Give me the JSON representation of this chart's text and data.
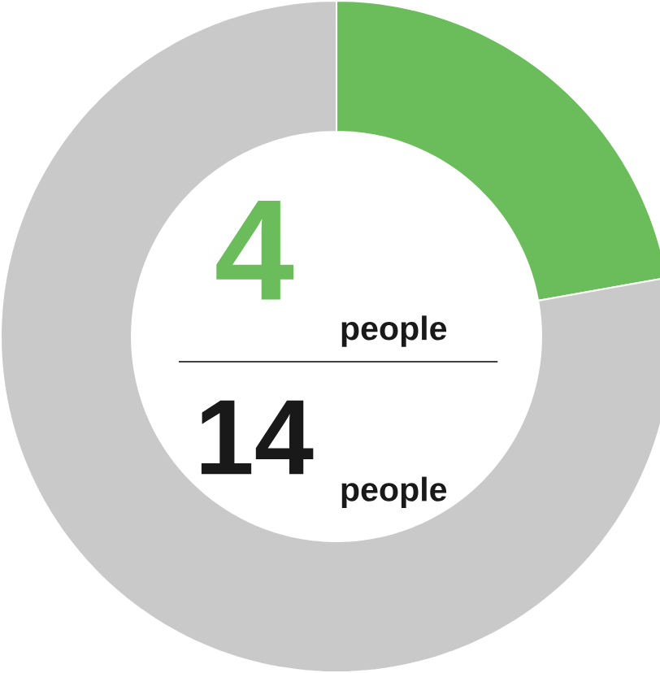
{
  "chart_data": {
    "type": "donut",
    "categories": [
      null,
      null
    ],
    "values": [
      22.2,
      77.8
    ],
    "colors": [
      "#6bbd5b",
      "#c9c9c9"
    ],
    "annotations": [
      "4",
      "people",
      "14",
      "people"
    ]
  }
}
